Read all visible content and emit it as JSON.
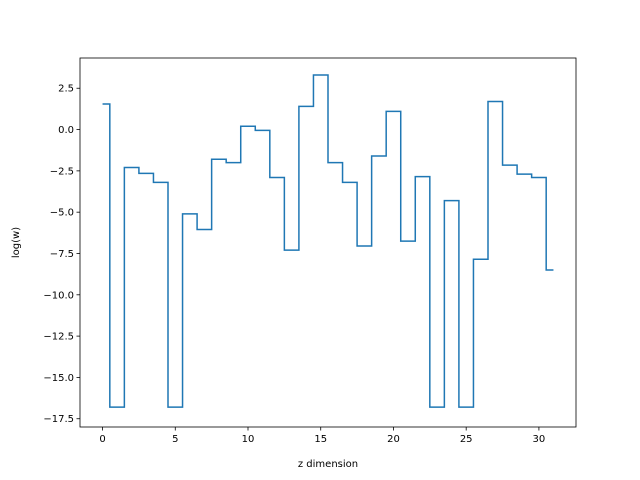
{
  "chart_data": {
    "type": "line",
    "drawstyle": "steps-mid",
    "title": "",
    "xlabel": "z dimension",
    "ylabel": "log(w)",
    "xlim": [
      -1.55,
      32.55
    ],
    "ylim": [
      -18.0,
      4.33
    ],
    "grid": false,
    "line_color": "#1f77b4",
    "x_ticks": [
      0,
      5,
      10,
      15,
      20,
      25,
      30
    ],
    "x_tick_labels": [
      "0",
      "5",
      "10",
      "15",
      "20",
      "25",
      "30"
    ],
    "y_ticks": [
      2.5,
      0.0,
      -2.5,
      -5.0,
      -7.5,
      -10.0,
      -12.5,
      -15.0,
      -17.5
    ],
    "y_tick_labels": [
      "2.5",
      "0.0",
      "−2.5",
      "−5.0",
      "−7.5",
      "−10.0",
      "−12.5",
      "−15.0",
      "−17.5"
    ],
    "series": [
      {
        "x": [
          0,
          1,
          2,
          3,
          4,
          5,
          6,
          7,
          8,
          9,
          10,
          11,
          12,
          13,
          14,
          15,
          16,
          17,
          18,
          19,
          20,
          21,
          22,
          23,
          24,
          25,
          26,
          27,
          28,
          29,
          30,
          31
        ],
        "values": [
          1.55,
          -16.8,
          -2.3,
          -2.65,
          -3.2,
          -16.8,
          -5.1,
          -6.05,
          -1.8,
          -2.0,
          0.2,
          -0.05,
          -2.9,
          -7.3,
          1.4,
          3.3,
          -2.0,
          -3.2,
          -7.05,
          -1.6,
          1.1,
          -6.75,
          -2.85,
          -16.8,
          -4.3,
          -16.8,
          -7.85,
          1.7,
          -2.15,
          -2.7,
          -2.9,
          -8.5
        ]
      }
    ]
  }
}
